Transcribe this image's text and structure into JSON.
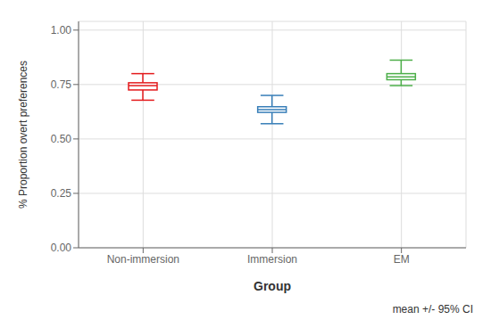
{
  "chart_data": {
    "type": "box",
    "xlabel": "Group",
    "ylabel": "% Proportion overt preferences",
    "annotation": "mean +/- 95% CI",
    "categories": [
      "Non-immersion",
      "Immersion",
      "EM"
    ],
    "means": [
      0.745,
      0.635,
      0.785
    ],
    "ci_lower": [
      0.725,
      0.622,
      0.772
    ],
    "ci_upper": [
      0.758,
      0.648,
      0.8
    ],
    "whisker_lower": [
      0.678,
      0.57,
      0.745
    ],
    "whisker_upper": [
      0.8,
      0.7,
      0.862
    ],
    "colors": [
      "#e41a1c",
      "#377eb8",
      "#4daf4a"
    ],
    "ylim": [
      0.0,
      1.04
    ],
    "yticks": [
      {
        "value": 0,
        "label": "0.00"
      },
      0.25,
      {
        "value": 0.5,
        "label": "0.50"
      },
      0.75,
      {
        "value": 1,
        "label": "1.00"
      }
    ],
    "grid": true
  }
}
